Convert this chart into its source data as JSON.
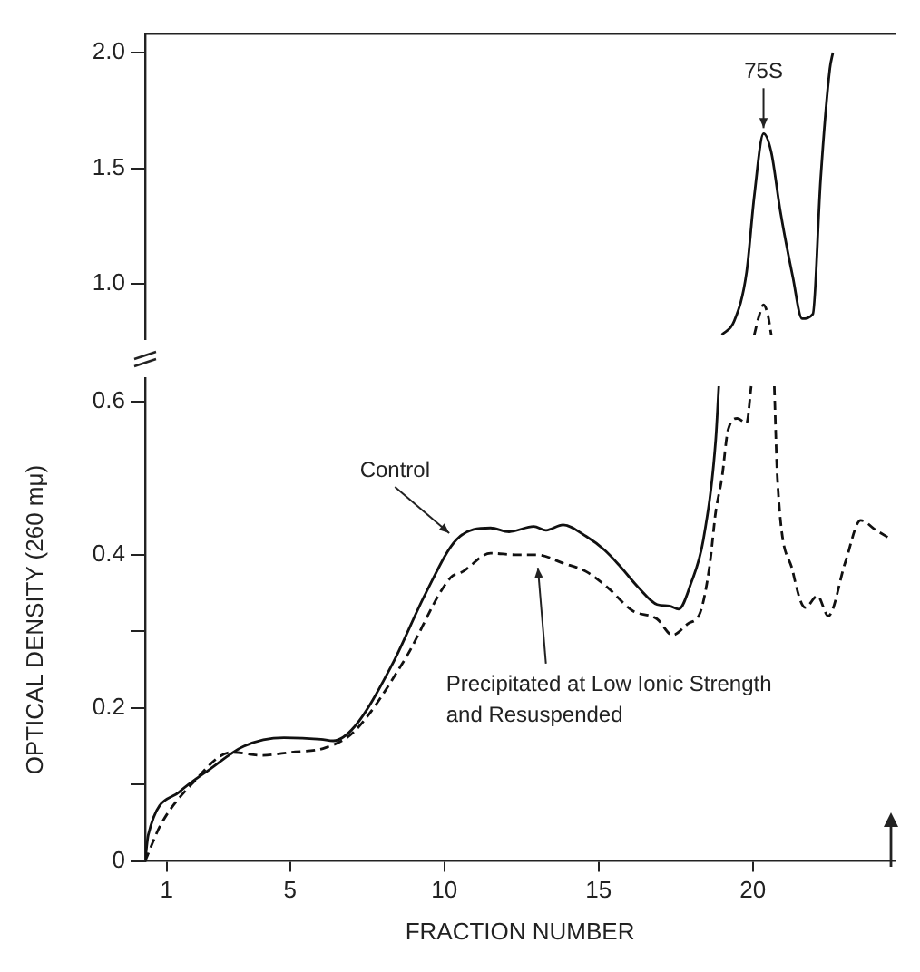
{
  "chart_data": [
    {
      "type": "line",
      "xlim": [
        0.3,
        24.6
      ],
      "xticks": [
        1,
        5,
        10,
        15,
        20
      ],
      "ylim": [
        0.76,
        2.08
      ],
      "yticks": [
        {
          "value": 1,
          "label": "1.0"
        },
        1.5,
        {
          "value": 2,
          "label": "2.0"
        }
      ],
      "tick_labels": "y",
      "series": [
        {
          "color": "#111111",
          "line_style": "solid",
          "x": [
            19.0,
            19.4,
            19.8,
            20.05,
            20.35,
            20.6,
            20.9,
            21.3,
            21.6,
            21.95,
            22.2,
            22.5,
            22.6
          ],
          "values": [
            0.78,
            0.84,
            1.05,
            1.38,
            1.65,
            1.57,
            1.31,
            1.03,
            0.85,
            0.87,
            1.45,
            1.93,
            2.0
          ]
        },
        {
          "color": "#111111",
          "line_style": "dashed",
          "x": [
            20.05,
            20.2,
            20.35,
            20.5,
            20.6
          ],
          "values": [
            0.78,
            0.86,
            0.91,
            0.86,
            0.78
          ]
        }
      ],
      "annotations": [
        {
          "text": "75S",
          "x": 20.35,
          "y": 1.65
        }
      ]
    },
    {
      "type": "line",
      "xlim": [
        0.3,
        24.6
      ],
      "xticks": [
        1,
        5,
        10,
        15,
        20
      ],
      "ylim": [
        0,
        0.63
      ],
      "yticks": [
        0,
        {
          "value": 0.1,
          "label": null
        },
        0.2,
        {
          "value": 0.3,
          "label": null
        },
        0.4,
        0.6
      ],
      "xlabel": "FRACTION NUMBER",
      "ylabel": "OPTICAL DENSITY (260 mμ)",
      "series": [
        {
          "color": "#111111",
          "line_style": "solid",
          "x": [
            0.3,
            0.4,
            1.4,
            2.4,
            3.5,
            4.8,
            6.0,
            6.4,
            7.1,
            8.3,
            9.4,
            10.4,
            11.5,
            12.1,
            12.9,
            13.3,
            13.85,
            14.6,
            15.2,
            15.7,
            16.3,
            16.9,
            17.3,
            17.6,
            18.0,
            18.4,
            18.8,
            18.9
          ],
          "values": [
            0,
            0.034,
            0.09,
            0.12,
            0.15,
            0.161,
            0.159,
            0.157,
            0.176,
            0.256,
            0.35,
            0.42,
            0.435,
            0.43,
            0.437,
            0.432,
            0.439,
            0.424,
            0.406,
            0.385,
            0.357,
            0.335,
            0.333,
            0.329,
            0.363,
            0.42,
            0.55,
            0.62
          ]
        },
        {
          "color": "#111111",
          "line_style": "dashed",
          "x": [
            0.3,
            0.8,
            1.8,
            3.1,
            4.1,
            5.0,
            6.15,
            7.1,
            8.7,
            10.2,
            10.6,
            11.5,
            12.3,
            13.0,
            13.85,
            14.6,
            15.3,
            16.1,
            16.9,
            17.4,
            17.9,
            18.3,
            18.6,
            18.8,
            19.0,
            19.2,
            19.5,
            19.8,
            19.95,
            20.3,
            20.7,
            20.8,
            21.3,
            21.7,
            22.1,
            22.45,
            23.0,
            23.5,
            24.0,
            24.5
          ],
          "values": [
            0,
            0.047,
            0.1,
            0.142,
            0.138,
            0.142,
            0.148,
            0.17,
            0.262,
            0.37,
            0.378,
            0.402,
            0.4,
            0.4,
            0.389,
            0.378,
            0.357,
            0.327,
            0.316,
            0.295,
            0.31,
            0.325,
            0.385,
            0.456,
            0.5,
            0.563,
            0.578,
            0.572,
            0.62,
            null,
            0.62,
            0.5,
            0.378,
            0.331,
            0.346,
            0.32,
            0.39,
            0.445,
            0.432,
            0.42
          ]
        }
      ],
      "annotations": [
        {
          "text": "Control",
          "x": 10.4,
          "y": 0.42
        },
        {
          "text": "Precipitated at Low Ionic Strength and Resuspended",
          "x": 13.0,
          "y": 0.4
        }
      ]
    }
  ]
}
